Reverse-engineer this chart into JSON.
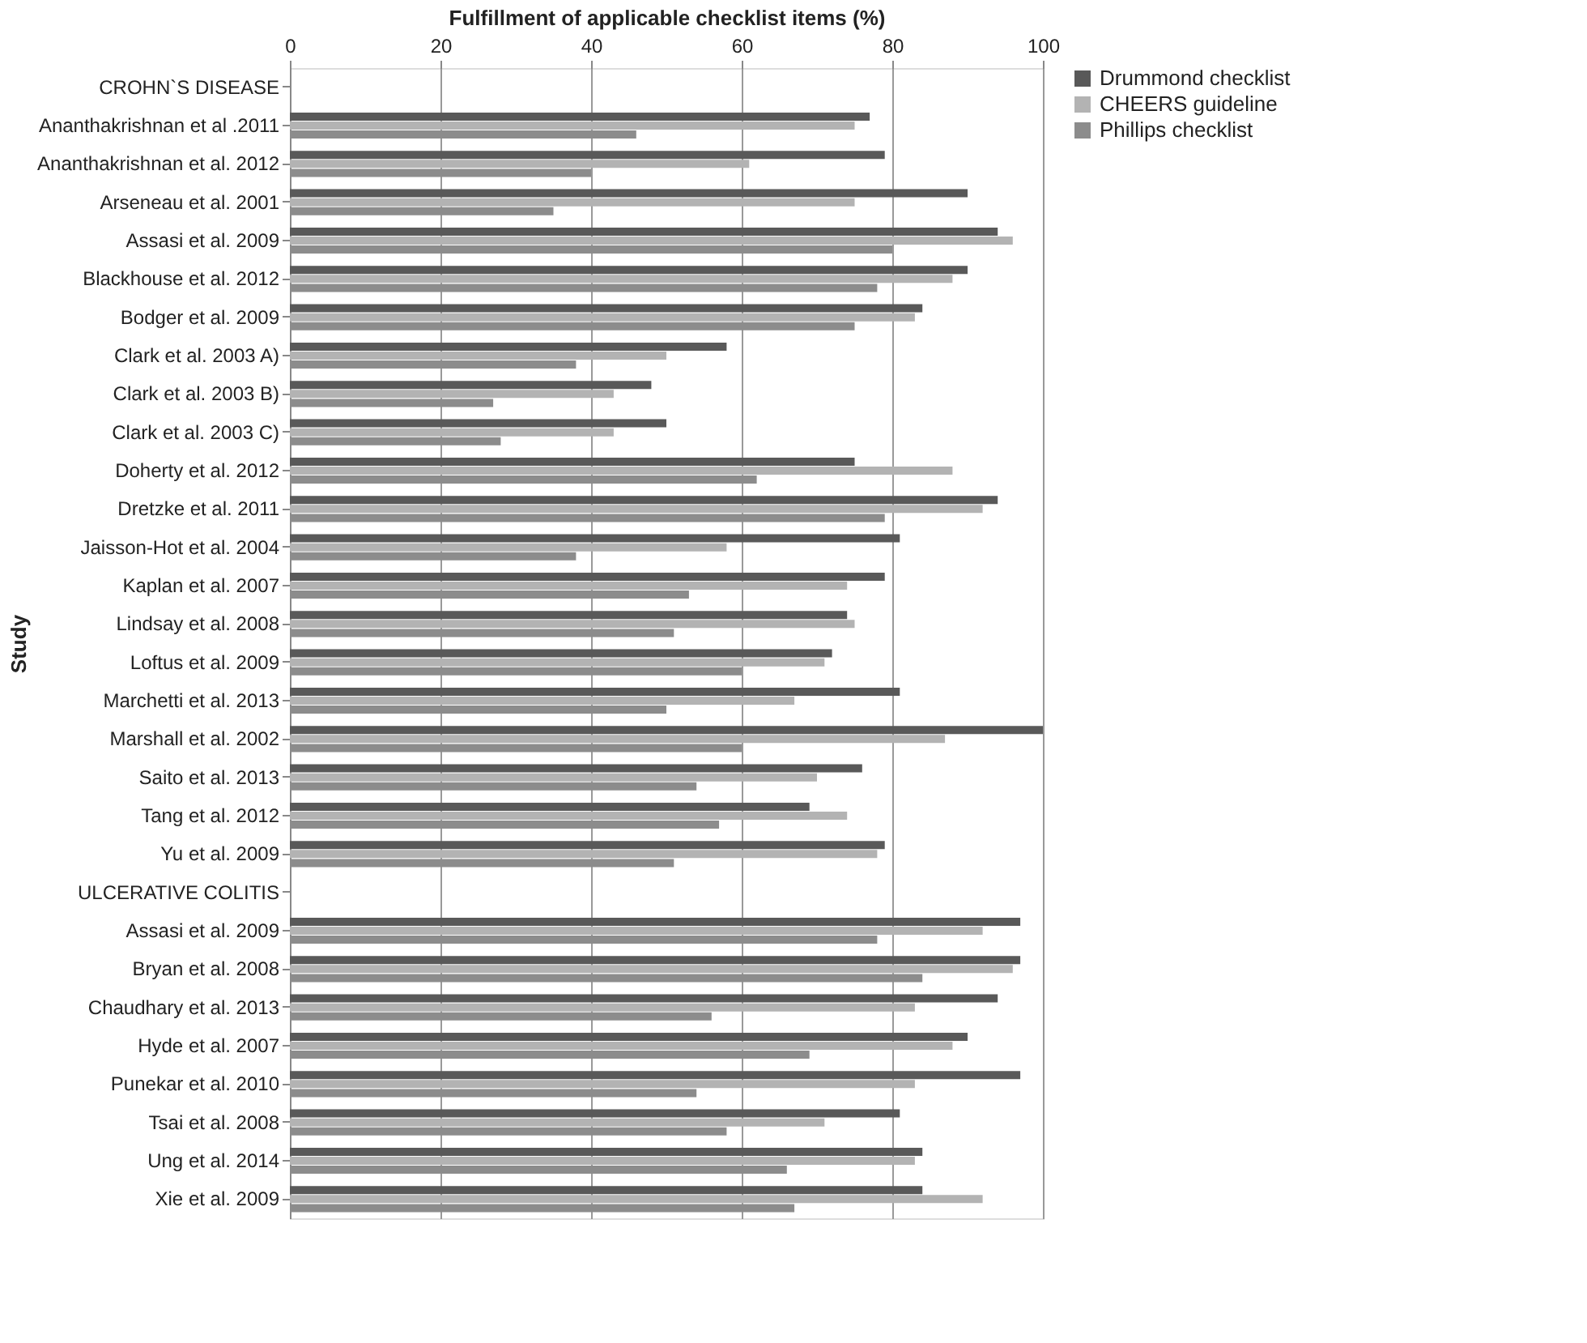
{
  "chart_data": {
    "type": "bar",
    "orientation": "horizontal",
    "xlabel": "Fulfillment of applicable checklist items (%)",
    "ylabel": "Study",
    "categories": [
      "CROHN`S DISEASE",
      "Ananthakrishnan et al .2011",
      "Ananthakrishnan et al. 2012",
      "Arseneau et al. 2001",
      "Assasi et al. 2009",
      "Blackhouse et al. 2012",
      "Bodger et al. 2009",
      "Clark et al. 2003 A)",
      "Clark et al. 2003 B)",
      "Clark et al. 2003 C)",
      "Doherty et al. 2012",
      "Dretzke et al. 2011",
      "Jaisson-Hot et al. 2004",
      "Kaplan et al. 2007",
      "Lindsay et al. 2008",
      "Loftus et al. 2009",
      "Marchetti et al. 2013",
      "Marshall et al. 2002",
      "Saito et al. 2013",
      "Tang et al. 2012",
      "Yu et al. 2009",
      "ULCERATIVE COLITIS",
      "Assasi et al. 2009",
      "Bryan et al. 2008",
      "Chaudhary et al. 2013",
      "Hyde et al. 2007",
      "Punekar et al. 2010",
      "Tsai et al. 2008",
      "Ung et al. 2014",
      "Xie et al. 2009"
    ],
    "series": [
      {
        "name": "Drummond checklist",
        "color": "#595959",
        "values": [
          null,
          77,
          79,
          90,
          94,
          90,
          84,
          58,
          48,
          50,
          75,
          94,
          81,
          79,
          74,
          72,
          81,
          100,
          76,
          69,
          79,
          null,
          97,
          97,
          94,
          90,
          97,
          81,
          84,
          84
        ]
      },
      {
        "name": "CHEERS guideline",
        "color": "#b3b3b3",
        "values": [
          null,
          75,
          61,
          75,
          96,
          88,
          83,
          50,
          43,
          43,
          88,
          92,
          58,
          74,
          75,
          71,
          67,
          87,
          70,
          74,
          78,
          null,
          92,
          96,
          83,
          88,
          83,
          71,
          83,
          92
        ]
      },
      {
        "name": "Phillips checklist",
        "color": "#8c8c8c",
        "values": [
          null,
          46,
          40,
          35,
          80,
          78,
          75,
          38,
          27,
          28,
          62,
          79,
          38,
          53,
          51,
          60,
          50,
          60,
          54,
          57,
          51,
          null,
          78,
          84,
          56,
          69,
          54,
          58,
          66,
          67
        ]
      }
    ],
    "xlim": [
      0,
      100
    ],
    "xticks": [
      0,
      20,
      40,
      60,
      80,
      100
    ],
    "grid": "x",
    "legend": "right"
  }
}
